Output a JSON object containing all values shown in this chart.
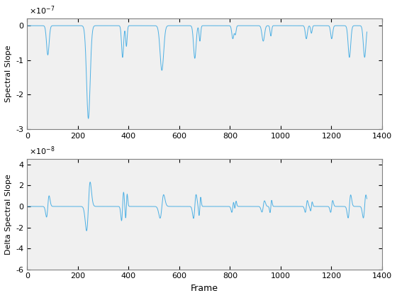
{
  "xlim": [
    0,
    1400
  ],
  "ylim1": [
    -3e-07,
    2e-08
  ],
  "ylim2": [
    -6e-08,
    4.5e-08
  ],
  "yticks1": [
    0,
    -1e-07,
    -2e-07,
    -3e-07
  ],
  "yticks2": [
    4e-08,
    2e-08,
    0,
    -2e-08,
    -4e-08,
    -6e-08
  ],
  "xlabel": "Frame",
  "ylabel1": "Spectral Slope",
  "ylabel2": "Delta Spectral Slope",
  "line_color": "#4db0e4",
  "linewidth": 0.7,
  "n_frames": 1340,
  "dip_centers": [
    80,
    240,
    375,
    390,
    530,
    660,
    680,
    810,
    820,
    930,
    960,
    1100,
    1120,
    1200,
    1270,
    1330
  ],
  "dip_depths": [
    -0.85,
    -2.7,
    -0.92,
    -0.6,
    -1.3,
    -0.95,
    -0.45,
    -0.38,
    -0.25,
    -0.45,
    -0.3,
    -0.38,
    -0.22,
    -0.38,
    -0.92,
    -0.92
  ],
  "dip_widths": [
    5,
    7,
    4,
    3,
    7,
    5,
    3,
    4,
    3,
    5,
    3,
    4,
    3,
    4,
    5,
    5
  ]
}
